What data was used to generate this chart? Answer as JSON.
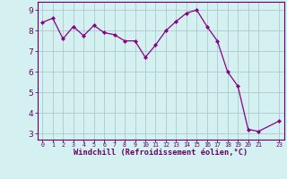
{
  "x": [
    0,
    1,
    2,
    3,
    4,
    5,
    6,
    7,
    8,
    9,
    10,
    11,
    12,
    13,
    14,
    15,
    16,
    17,
    18,
    19,
    20,
    21,
    23
  ],
  "y": [
    8.4,
    8.6,
    7.6,
    8.2,
    7.75,
    8.25,
    7.9,
    7.8,
    7.5,
    7.5,
    6.7,
    7.3,
    8.0,
    8.45,
    8.85,
    9.0,
    8.2,
    7.5,
    6.0,
    5.3,
    3.2,
    3.1,
    3.6
  ],
  "line_color": "#880088",
  "marker": "D",
  "marker_size": 2.2,
  "bg_color": "#d4f0f0",
  "grid_color": "#aacccc",
  "xlabel": "Windchill (Refroidissement éolien,°C)",
  "ylabel_ticks": [
    3,
    4,
    5,
    6,
    7,
    8,
    9
  ],
  "xlim": [
    -0.5,
    23.5
  ],
  "ylim": [
    2.7,
    9.4
  ],
  "label_color": "#660066",
  "tick_color": "#660066",
  "spine_color": "#660066"
}
